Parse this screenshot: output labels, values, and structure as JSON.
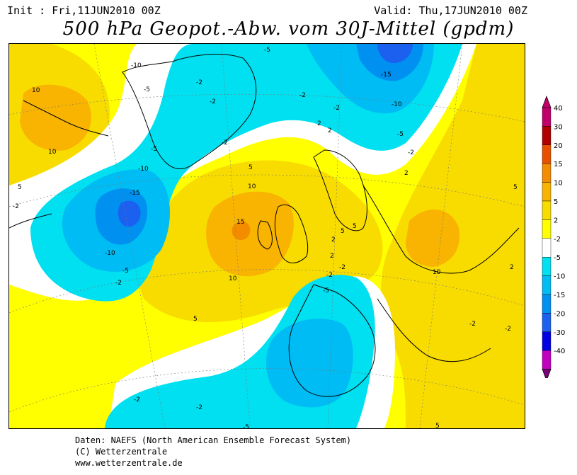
{
  "header": {
    "init": "Init : Fri,11JUN2010 00Z",
    "valid": "Valid: Thu,17JUN2010 00Z",
    "title": "500 hPa Geopot.-Abw. vom 30J-Mittel (gpdm)"
  },
  "legend": {
    "levels": [
      {
        "label": "40",
        "color": "#c0006a"
      },
      {
        "label": "30",
        "color": "#b00000"
      },
      {
        "label": "20",
        "color": "#e85000"
      },
      {
        "label": "15",
        "color": "#f48c00"
      },
      {
        "label": "10",
        "color": "#f8b400"
      },
      {
        "label": "5",
        "color": "#f8dc00"
      },
      {
        "label": "2",
        "color": "#ffff00"
      },
      {
        "label": "-2",
        "color": "#ffffff"
      },
      {
        "label": "-5",
        "color": "#00e0f0"
      },
      {
        "label": "-10",
        "color": "#00bcf4"
      },
      {
        "label": "-15",
        "color": "#0090f0"
      },
      {
        "label": "-20",
        "color": "#1c60f0"
      },
      {
        "label": "-30",
        "color": "#0000e0"
      },
      {
        "label": "-40",
        "color": "#c000c0"
      }
    ],
    "bottom_color": "#780078",
    "top_color": "#c0006a"
  },
  "map_labels": [
    {
      "text": "10"
    },
    {
      "text": "10"
    },
    {
      "text": "5"
    },
    {
      "text": "-2"
    },
    {
      "text": "-10"
    },
    {
      "text": "-5"
    },
    {
      "text": "-2"
    },
    {
      "text": "-2"
    },
    {
      "text": "-5"
    },
    {
      "text": "-15"
    },
    {
      "text": "-10"
    },
    {
      "text": "-5"
    },
    {
      "text": "-2"
    },
    {
      "text": "-2"
    },
    {
      "text": "-5"
    },
    {
      "text": "-10"
    },
    {
      "text": "-15"
    },
    {
      "text": "-10"
    },
    {
      "text": "-5"
    },
    {
      "text": "-2"
    },
    {
      "text": "5"
    },
    {
      "text": "10"
    },
    {
      "text": "15"
    },
    {
      "text": "10"
    },
    {
      "text": "5"
    },
    {
      "text": "2"
    },
    {
      "text": "-2"
    },
    {
      "text": "-2"
    },
    {
      "text": "5"
    },
    {
      "text": "5"
    },
    {
      "text": "10"
    },
    {
      "text": "5"
    },
    {
      "text": "2"
    },
    {
      "text": "-2"
    },
    {
      "text": "-5"
    },
    {
      "text": "-2"
    },
    {
      "text": "-2"
    },
    {
      "text": "-5"
    },
    {
      "text": "2"
    },
    {
      "text": "-2"
    },
    {
      "text": "5"
    },
    {
      "text": "2"
    },
    {
      "text": "2"
    },
    {
      "text": "-2"
    },
    {
      "text": "-2"
    },
    {
      "text": "2"
    }
  ],
  "footer": {
    "line1": "Daten: NAEFS (North American Ensemble Forecast System)",
    "line2": "(C) Wetterzentrale",
    "line3": "www.wetterzentrale.de"
  }
}
